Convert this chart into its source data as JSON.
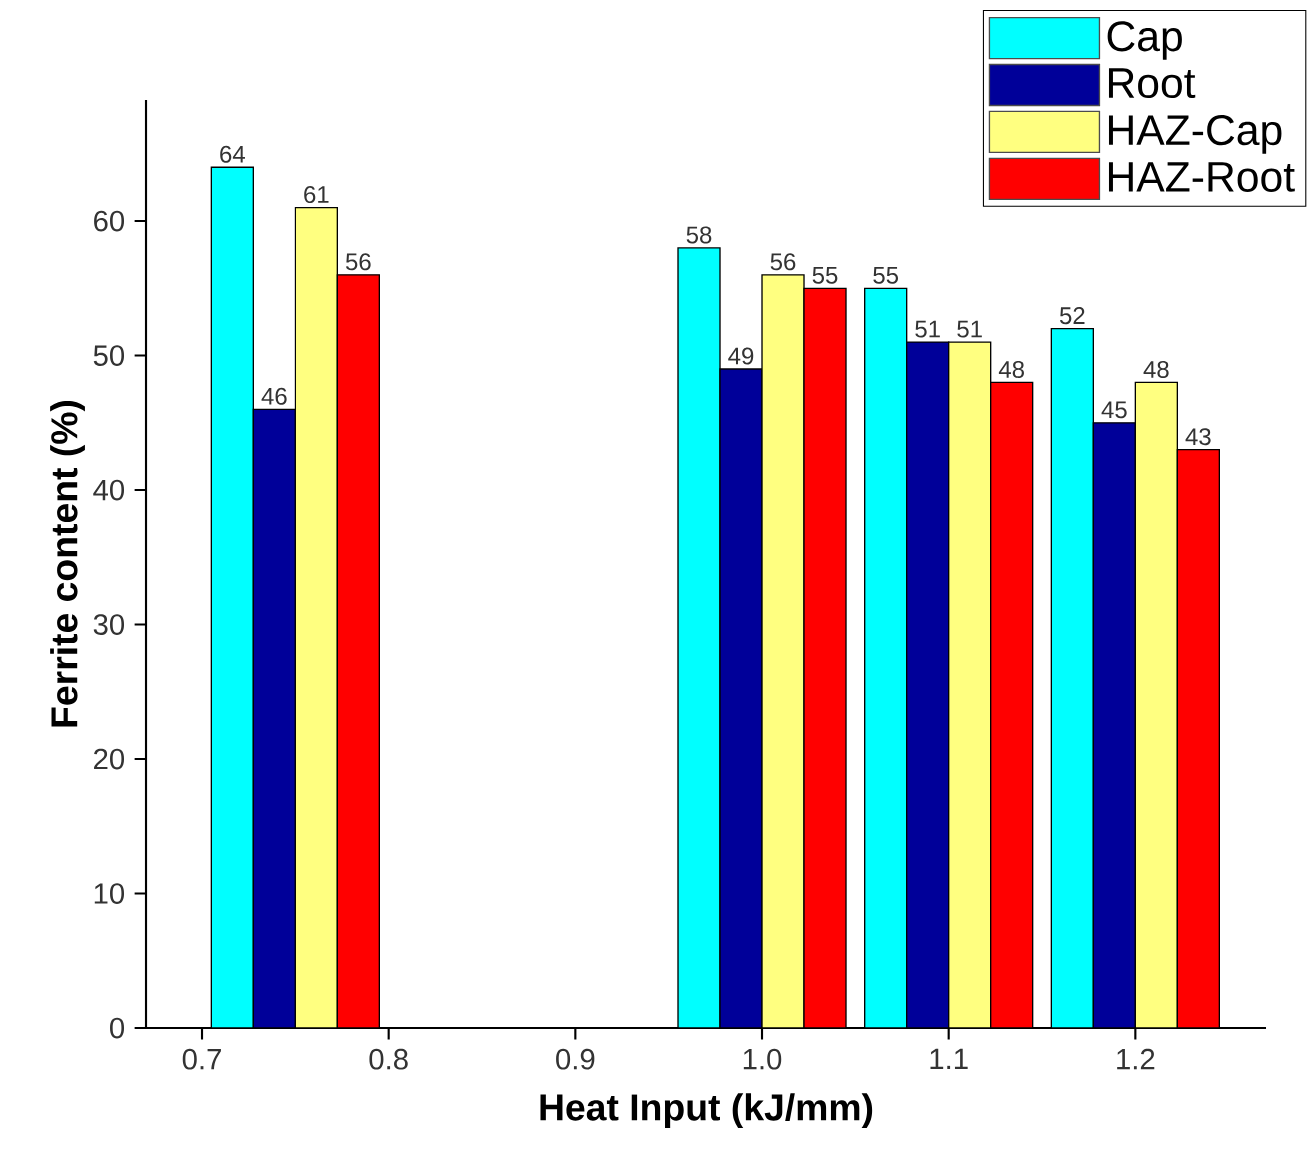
{
  "chart_data": {
    "type": "bar",
    "xlabel": "Heat Input (kJ/mm)",
    "ylabel": "Ferrite content (%)",
    "x": [
      0.75,
      1.0,
      1.1,
      1.2
    ],
    "series": [
      {
        "name": "Cap",
        "color": "#00ffff",
        "values": [
          64,
          58,
          55,
          52
        ]
      },
      {
        "name": "Root",
        "color": "#000099",
        "values": [
          46,
          49,
          51,
          45
        ]
      },
      {
        "name": "HAZ-Cap",
        "color": "#ffff80",
        "values": [
          61,
          56,
          51,
          48
        ]
      },
      {
        "name": "HAZ-Root",
        "color": "#ff0000",
        "values": [
          56,
          55,
          48,
          43
        ]
      }
    ],
    "xlim": [
      0.67,
      1.27
    ],
    "ylim": [
      0,
      69
    ],
    "xticks": [
      0.7,
      0.8,
      0.9,
      {
        "value": 1.0,
        "label": "1.0"
      },
      1.1,
      1.2
    ],
    "yticks": [
      0,
      10,
      20,
      30,
      40,
      50,
      60
    ],
    "data_labels": true,
    "legend": "top right",
    "grid": false
  }
}
